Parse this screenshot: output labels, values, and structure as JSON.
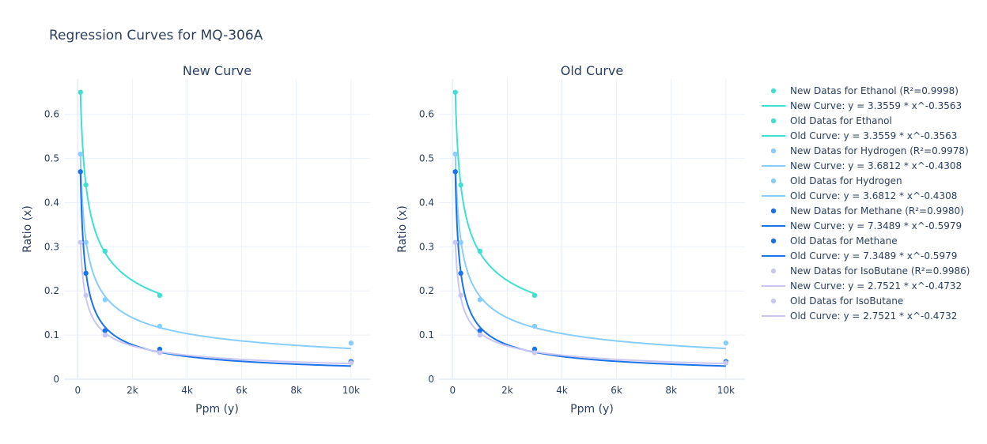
{
  "title": "Regression Curves for MQ-306A",
  "chart_data": [
    {
      "type": "scatter",
      "title": "New Curve",
      "xlabel": "Ppm (y)",
      "ylabel": "Ratio (x)",
      "xlim": [
        -500,
        10700
      ],
      "ylim": [
        0,
        0.68
      ],
      "xticks": [
        0,
        2000,
        4000,
        6000,
        8000,
        10000
      ],
      "xtick_labels": [
        "0",
        "2k",
        "4k",
        "6k",
        "8k",
        "10k"
      ],
      "yticks": [
        0,
        0.1,
        0.2,
        0.3,
        0.4,
        0.5,
        0.6
      ],
      "ytick_labels": [
        "0",
        "0.1",
        "0.2",
        "0.3",
        "0.4",
        "0.5",
        "0.6"
      ],
      "series": [
        {
          "name": "New Datas for Ethanol (R²=0.9998)",
          "mode": "markers",
          "color": "#40e0d0",
          "x": [
            100,
            300,
            1000,
            3000
          ],
          "y": [
            0.65,
            0.44,
            0.29,
            0.19
          ]
        },
        {
          "name": "New Curve: y = 3.3559 * x^-0.3563",
          "mode": "line",
          "color": "#40e0d0",
          "a": 3.3559,
          "b": -0.3563,
          "x_range": [
            100,
            3000
          ]
        },
        {
          "name": "New Datas for Hydrogen (R²=0.9978)",
          "mode": "markers",
          "color": "#87cefa",
          "x": [
            100,
            300,
            1000,
            3000,
            10000
          ],
          "y": [
            0.51,
            0.31,
            0.18,
            0.12,
            0.082
          ]
        },
        {
          "name": "New Curve: y = 3.6812 * x^-0.4308",
          "mode": "line",
          "color": "#87cefa",
          "a": 3.6812,
          "b": -0.4308,
          "x_range": [
            100,
            10000
          ]
        },
        {
          "name": "New Datas for Methane (R²=0.9980)",
          "mode": "markers",
          "color": "#1a73e8",
          "x": [
            100,
            300,
            1000,
            3000,
            10000
          ],
          "y": [
            0.47,
            0.24,
            0.11,
            0.068,
            0.04
          ]
        },
        {
          "name": "New Curve: y = 7.3489 * x^-0.5979",
          "mode": "line",
          "color": "#1a73e8",
          "a": 7.3489,
          "b": -0.5979,
          "x_range": [
            100,
            10000
          ]
        },
        {
          "name": "New Datas for IsoButane (R²=0.9986)",
          "mode": "markers",
          "color": "#c9c7f2",
          "x": [
            100,
            300,
            1000,
            3000,
            10000
          ],
          "y": [
            0.31,
            0.19,
            0.1,
            0.06,
            0.037
          ]
        },
        {
          "name": "New Curve: y = 2.7521 * x^-0.4732",
          "mode": "line",
          "color": "#c9c7f2",
          "a": 2.7521,
          "b": -0.4732,
          "x_range": [
            100,
            10000
          ]
        }
      ]
    },
    {
      "type": "scatter",
      "title": "Old Curve",
      "xlabel": "Ppm (y)",
      "ylabel": "Ratio (x)",
      "xlim": [
        -500,
        10700
      ],
      "ylim": [
        0,
        0.68
      ],
      "xticks": [
        0,
        2000,
        4000,
        6000,
        8000,
        10000
      ],
      "xtick_labels": [
        "0",
        "2k",
        "4k",
        "6k",
        "8k",
        "10k"
      ],
      "yticks": [
        0,
        0.1,
        0.2,
        0.3,
        0.4,
        0.5,
        0.6
      ],
      "ytick_labels": [
        "0",
        "0.1",
        "0.2",
        "0.3",
        "0.4",
        "0.5",
        "0.6"
      ],
      "series": [
        {
          "name": "Old Datas for Ethanol",
          "mode": "markers",
          "color": "#40e0d0",
          "x": [
            100,
            300,
            1000,
            3000
          ],
          "y": [
            0.65,
            0.44,
            0.29,
            0.19
          ]
        },
        {
          "name": "Old Curve: y = 3.3559 * x^-0.3563",
          "mode": "line",
          "color": "#40e0d0",
          "a": 3.3559,
          "b": -0.3563,
          "x_range": [
            100,
            3000
          ]
        },
        {
          "name": "Old Datas for Hydrogen",
          "mode": "markers",
          "color": "#87cefa",
          "x": [
            100,
            300,
            1000,
            3000,
            10000
          ],
          "y": [
            0.51,
            0.31,
            0.18,
            0.12,
            0.082
          ]
        },
        {
          "name": "Old Curve: y = 3.6812 * x^-0.4308",
          "mode": "line",
          "color": "#87cefa",
          "a": 3.6812,
          "b": -0.4308,
          "x_range": [
            100,
            10000
          ]
        },
        {
          "name": "Old Datas for Methane",
          "mode": "markers",
          "color": "#1a73e8",
          "x": [
            100,
            300,
            1000,
            3000,
            10000
          ],
          "y": [
            0.47,
            0.24,
            0.11,
            0.068,
            0.04
          ]
        },
        {
          "name": "Old Curve: y = 7.3489 * x^-0.5979",
          "mode": "line",
          "color": "#1a73e8",
          "a": 7.3489,
          "b": -0.5979,
          "x_range": [
            100,
            10000
          ]
        },
        {
          "name": "Old Datas for IsoButane",
          "mode": "markers",
          "color": "#c9c7f2",
          "x": [
            100,
            300,
            1000,
            3000,
            10000
          ],
          "y": [
            0.31,
            0.19,
            0.1,
            0.06,
            0.037
          ]
        },
        {
          "name": "Old Curve: y = 2.7521 * x^-0.4732",
          "mode": "line",
          "color": "#c9c7f2",
          "a": 2.7521,
          "b": -0.4732,
          "x_range": [
            100,
            10000
          ]
        }
      ]
    }
  ],
  "legend": {
    "placement": "right",
    "order": [
      [
        0,
        0
      ],
      [
        0,
        1
      ],
      [
        1,
        0
      ],
      [
        1,
        1
      ],
      [
        0,
        2
      ],
      [
        0,
        3
      ],
      [
        1,
        2
      ],
      [
        1,
        3
      ],
      [
        0,
        4
      ],
      [
        0,
        5
      ],
      [
        1,
        4
      ],
      [
        1,
        5
      ],
      [
        0,
        6
      ],
      [
        0,
        7
      ],
      [
        1,
        6
      ],
      [
        1,
        7
      ]
    ]
  }
}
